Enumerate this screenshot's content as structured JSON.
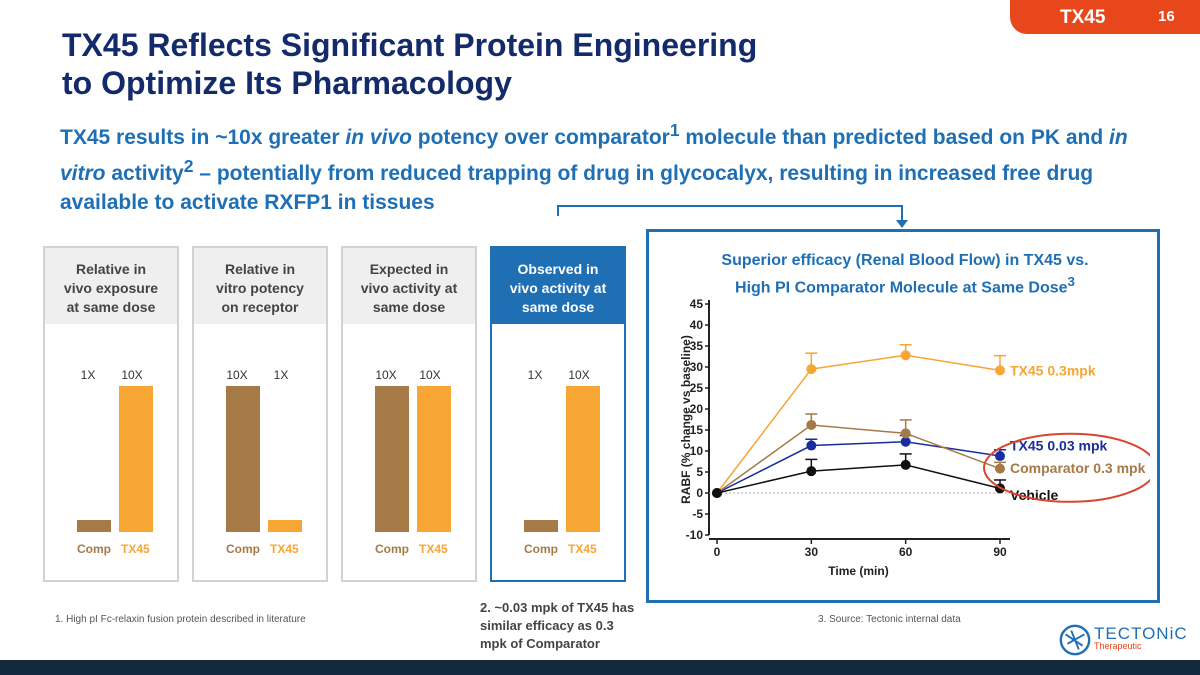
{
  "header": {
    "tag": "TX45",
    "page_number": "16"
  },
  "title": {
    "line1": "TX45 Reflects Significant Protein Engineering",
    "line2": "to Optimize Its Pharmacology"
  },
  "subtitle": {
    "p1": "TX45 results in ~10x greater ",
    "p2": "in vivo",
    "p3": " potency over comparator",
    "sup1": "1",
    "p4": " molecule than predicted based on PK and ",
    "p5": "in vitro",
    "p6": " activity",
    "sup2": "2",
    "p7": " – potentially from reduced trapping of drug in glycocalyx, resulting in increased free drug available to activate RXFP1 in tissues"
  },
  "panels": [
    {
      "h1": "Relative in",
      "h2": "vivo exposure",
      "h3": "at same dose",
      "left": "1X",
      "right": "10X",
      "comp_rel": 0.1,
      "tx_rel": 1.0,
      "comp_label": "Comp",
      "tx_label": "TX45"
    },
    {
      "h1": "Relative in",
      "h2": "vitro potency",
      "h3": "on receptor",
      "left": "10X",
      "right": "1X",
      "comp_rel": 1.0,
      "tx_rel": 0.1,
      "comp_label": "Comp",
      "tx_label": "TX45"
    },
    {
      "h1": "Expected in",
      "h2": "vivo activity at",
      "h3": "same dose",
      "left": "10X",
      "right": "10X",
      "comp_rel": 1.0,
      "tx_rel": 1.0,
      "comp_label": "Comp",
      "tx_label": "TX45"
    },
    {
      "h1": "Observed in",
      "h2": "vivo activity at",
      "h3": "same dose",
      "left": "1X",
      "right": "10X",
      "comp_rel": 0.1,
      "tx_rel": 1.0,
      "comp_label": "Comp",
      "tx_label": "TX45"
    }
  ],
  "chart": {
    "title1": "Superior efficacy (Renal Blood Flow) in TX45 vs.",
    "title2": "High PI Comparator Molecule at Same Dose",
    "title_sup": "3"
  },
  "chart_data": {
    "type": "line",
    "xlabel": "Time (min)",
    "ylabel": "RABF (% change vs baseline)",
    "x": [
      0,
      30,
      60,
      90
    ],
    "xticks": [
      "0",
      "30",
      "60",
      "90"
    ],
    "yticks": [
      "-10",
      "-5",
      "0",
      "5",
      "10",
      "15",
      "20",
      "25",
      "30",
      "35",
      "40",
      "45"
    ],
    "ylim": [
      -10,
      45
    ],
    "series": [
      {
        "name": "TX45 0.3mpk",
        "values": [
          0,
          29.5,
          32.8,
          29.2
        ],
        "err": [
          0,
          3.8,
          2.5,
          3.5
        ],
        "color": "#f7a534"
      },
      {
        "name": "TX45 0.03 mpk",
        "values": [
          0,
          11.3,
          12.2,
          8.8
        ],
        "err": [
          0,
          1.5,
          1.5,
          1.5
        ],
        "color": "#1a2d9c"
      },
      {
        "name": "Comparator 0.3 mpk",
        "values": [
          0,
          16.2,
          14.2,
          5.8
        ],
        "err": [
          0,
          2.6,
          3.2,
          1.5
        ],
        "color": "#a57a47"
      },
      {
        "name": "Vehicle",
        "values": [
          0,
          5.2,
          6.7,
          1.1
        ],
        "err": [
          0,
          2.8,
          2.6,
          2.0
        ],
        "color": "#111111"
      }
    ]
  },
  "footnotes": {
    "f1": "1.   High pI Fc-relaxin fusion protein described in literature",
    "f2": "2. ~0.03 mpk of TX45 has similar efficacy as 0.3 mpk of Comparator",
    "f3": "3.   Source: Tectonic internal data"
  },
  "logo": {
    "name": "TECTONiC",
    "sub": "Therapeutic"
  }
}
